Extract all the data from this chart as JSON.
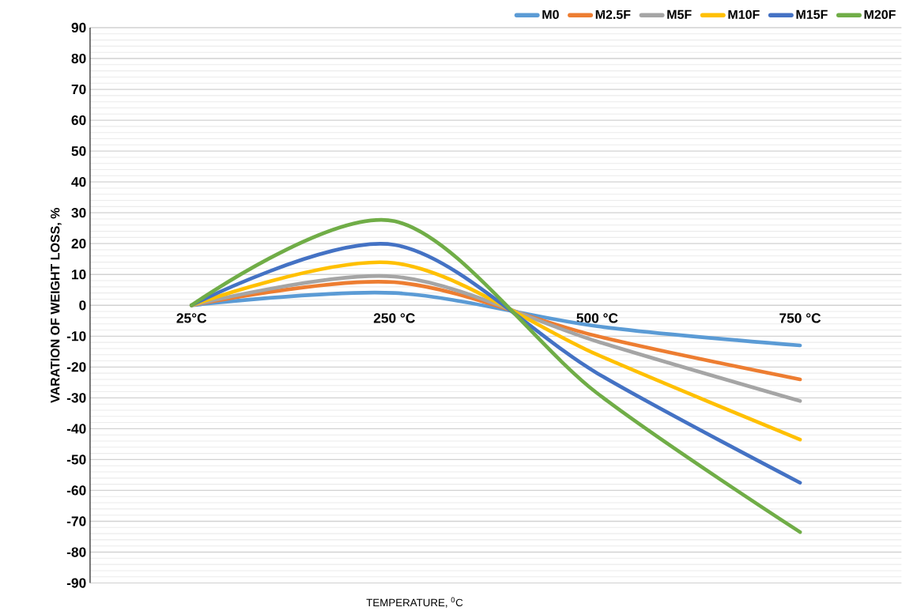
{
  "chart_data": {
    "type": "line",
    "xlabel": "TEMPERATURE, $^{0}$C",
    "ylabel": "VARATION OF WEIGHT LOSS, %",
    "categories": [
      "25°C",
      "250 °C",
      "500 °C",
      "750 °C"
    ],
    "ylim": [
      -90,
      90
    ],
    "yticks": [
      -90,
      -80,
      -70,
      -60,
      -50,
      -40,
      -30,
      -20,
      -10,
      0,
      10,
      20,
      30,
      40,
      50,
      60,
      70,
      80,
      90
    ],
    "grid": "y",
    "legend": "top",
    "line_style": "solid",
    "marker": "none",
    "series": [
      {
        "name": "M0",
        "color": "#5b9bd5",
        "values": [
          0,
          4,
          -6.8,
          -13
        ]
      },
      {
        "name": "M2.5F",
        "color": "#ed7d31",
        "values": [
          0,
          7.5,
          -10,
          -24
        ]
      },
      {
        "name": "M5F",
        "color": "#a5a5a5",
        "values": [
          0,
          9.3,
          -11.7,
          -31
        ]
      },
      {
        "name": "M10F",
        "color": "#ffc000",
        "values": [
          0,
          13.7,
          -16,
          -43.5
        ]
      },
      {
        "name": "M15F",
        "color": "#4472c4",
        "values": [
          0,
          19.6,
          -22,
          -57.5
        ]
      },
      {
        "name": "M20F",
        "color": "#70ad47",
        "values": [
          0,
          27.3,
          -28.5,
          -73.5
        ]
      }
    ]
  }
}
